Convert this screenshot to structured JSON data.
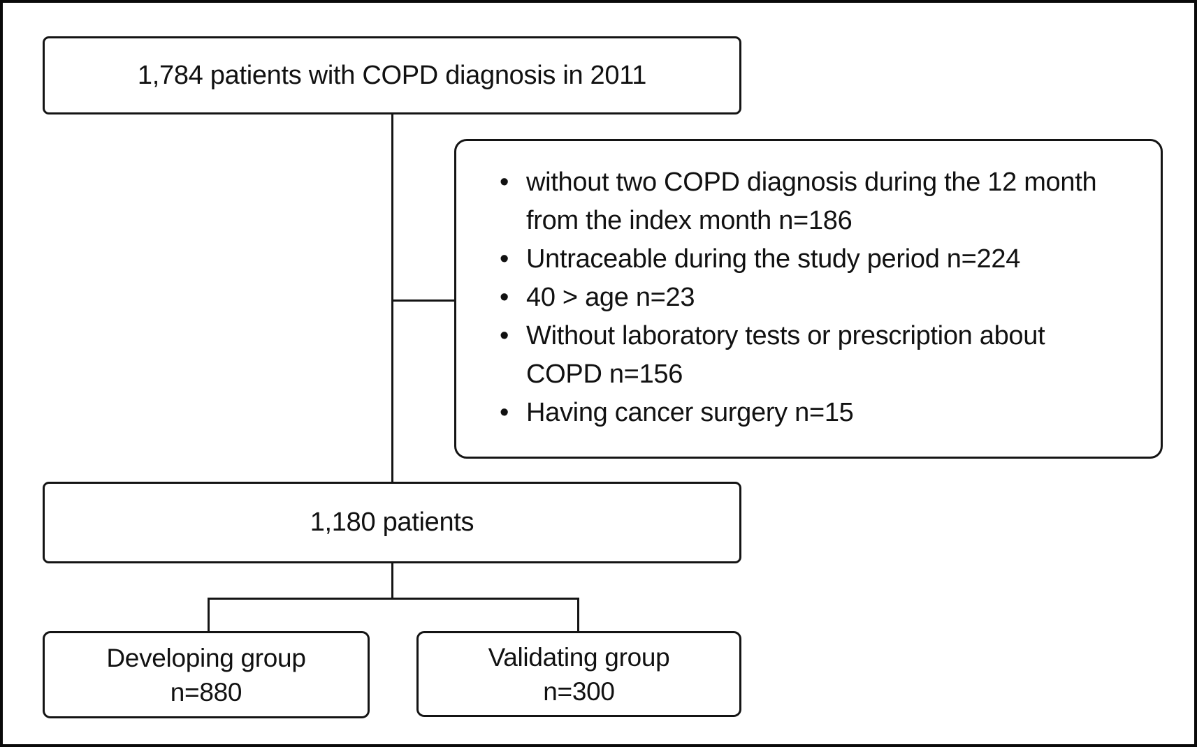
{
  "flowchart": {
    "colors": {
      "background": "#ffffff",
      "line": "#141414"
    },
    "top_box": {
      "text": "1,784 patients with COPD diagnosis in 2011"
    },
    "exclusion_box": {
      "bullets": [
        "without two COPD diagnosis during the 12 month from the index month n=186",
        "Untraceable during the study period n=224",
        "40 > age n=23",
        "Without laboratory tests or prescription about COPD n=156",
        "Having cancer surgery n=15"
      ]
    },
    "cohort_box": {
      "text": "1,180 patients"
    },
    "developing_box": {
      "name": "Developing group",
      "n": "n=880"
    },
    "validating_box": {
      "name": "Validating group",
      "n": "n=300"
    }
  }
}
